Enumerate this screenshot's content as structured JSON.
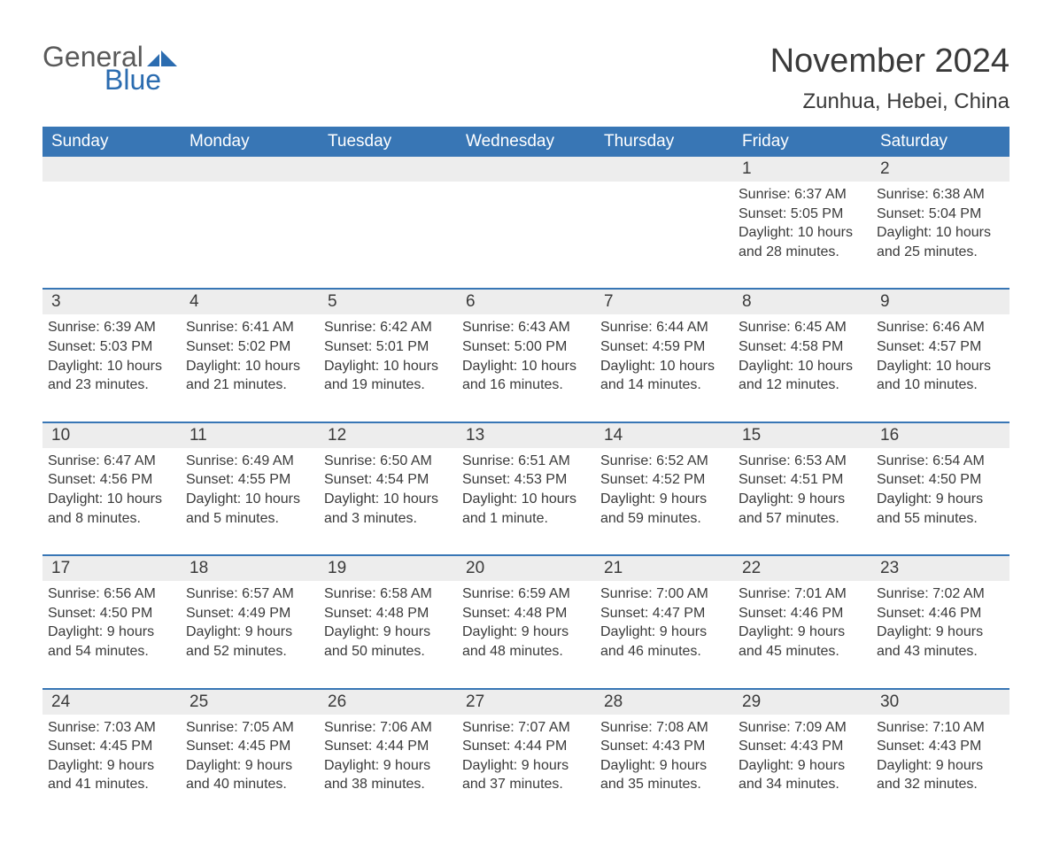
{
  "logo": {
    "word1": "General",
    "word2": "Blue",
    "color_gray": "#5a5a5a",
    "color_blue": "#2b6cb0"
  },
  "title": "November 2024",
  "location": "Zunhua, Hebei, China",
  "header_bg": "#3876b5",
  "header_fg": "#ffffff",
  "daynum_bg": "#ededed",
  "week_border": "#3876b5",
  "text_color": "#3a3a3a",
  "background": "#ffffff",
  "days_of_week": [
    "Sunday",
    "Monday",
    "Tuesday",
    "Wednesday",
    "Thursday",
    "Friday",
    "Saturday"
  ],
  "field_labels": {
    "sunrise": "Sunrise:",
    "sunset": "Sunset:",
    "daylight": "Daylight:"
  },
  "weeks": [
    [
      {
        "empty": true
      },
      {
        "empty": true
      },
      {
        "empty": true
      },
      {
        "empty": true
      },
      {
        "empty": true
      },
      {
        "num": "1",
        "sunrise": "6:37 AM",
        "sunset": "5:05 PM",
        "daylight": "10 hours and 28 minutes."
      },
      {
        "num": "2",
        "sunrise": "6:38 AM",
        "sunset": "5:04 PM",
        "daylight": "10 hours and 25 minutes."
      }
    ],
    [
      {
        "num": "3",
        "sunrise": "6:39 AM",
        "sunset": "5:03 PM",
        "daylight": "10 hours and 23 minutes."
      },
      {
        "num": "4",
        "sunrise": "6:41 AM",
        "sunset": "5:02 PM",
        "daylight": "10 hours and 21 minutes."
      },
      {
        "num": "5",
        "sunrise": "6:42 AM",
        "sunset": "5:01 PM",
        "daylight": "10 hours and 19 minutes."
      },
      {
        "num": "6",
        "sunrise": "6:43 AM",
        "sunset": "5:00 PM",
        "daylight": "10 hours and 16 minutes."
      },
      {
        "num": "7",
        "sunrise": "6:44 AM",
        "sunset": "4:59 PM",
        "daylight": "10 hours and 14 minutes."
      },
      {
        "num": "8",
        "sunrise": "6:45 AM",
        "sunset": "4:58 PM",
        "daylight": "10 hours and 12 minutes."
      },
      {
        "num": "9",
        "sunrise": "6:46 AM",
        "sunset": "4:57 PM",
        "daylight": "10 hours and 10 minutes."
      }
    ],
    [
      {
        "num": "10",
        "sunrise": "6:47 AM",
        "sunset": "4:56 PM",
        "daylight": "10 hours and 8 minutes."
      },
      {
        "num": "11",
        "sunrise": "6:49 AM",
        "sunset": "4:55 PM",
        "daylight": "10 hours and 5 minutes."
      },
      {
        "num": "12",
        "sunrise": "6:50 AM",
        "sunset": "4:54 PM",
        "daylight": "10 hours and 3 minutes."
      },
      {
        "num": "13",
        "sunrise": "6:51 AM",
        "sunset": "4:53 PM",
        "daylight": "10 hours and 1 minute."
      },
      {
        "num": "14",
        "sunrise": "6:52 AM",
        "sunset": "4:52 PM",
        "daylight": "9 hours and 59 minutes."
      },
      {
        "num": "15",
        "sunrise": "6:53 AM",
        "sunset": "4:51 PM",
        "daylight": "9 hours and 57 minutes."
      },
      {
        "num": "16",
        "sunrise": "6:54 AM",
        "sunset": "4:50 PM",
        "daylight": "9 hours and 55 minutes."
      }
    ],
    [
      {
        "num": "17",
        "sunrise": "6:56 AM",
        "sunset": "4:50 PM",
        "daylight": "9 hours and 54 minutes."
      },
      {
        "num": "18",
        "sunrise": "6:57 AM",
        "sunset": "4:49 PM",
        "daylight": "9 hours and 52 minutes."
      },
      {
        "num": "19",
        "sunrise": "6:58 AM",
        "sunset": "4:48 PM",
        "daylight": "9 hours and 50 minutes."
      },
      {
        "num": "20",
        "sunrise": "6:59 AM",
        "sunset": "4:48 PM",
        "daylight": "9 hours and 48 minutes."
      },
      {
        "num": "21",
        "sunrise": "7:00 AM",
        "sunset": "4:47 PM",
        "daylight": "9 hours and 46 minutes."
      },
      {
        "num": "22",
        "sunrise": "7:01 AM",
        "sunset": "4:46 PM",
        "daylight": "9 hours and 45 minutes."
      },
      {
        "num": "23",
        "sunrise": "7:02 AM",
        "sunset": "4:46 PM",
        "daylight": "9 hours and 43 minutes."
      }
    ],
    [
      {
        "num": "24",
        "sunrise": "7:03 AM",
        "sunset": "4:45 PM",
        "daylight": "9 hours and 41 minutes."
      },
      {
        "num": "25",
        "sunrise": "7:05 AM",
        "sunset": "4:45 PM",
        "daylight": "9 hours and 40 minutes."
      },
      {
        "num": "26",
        "sunrise": "7:06 AM",
        "sunset": "4:44 PM",
        "daylight": "9 hours and 38 minutes."
      },
      {
        "num": "27",
        "sunrise": "7:07 AM",
        "sunset": "4:44 PM",
        "daylight": "9 hours and 37 minutes."
      },
      {
        "num": "28",
        "sunrise": "7:08 AM",
        "sunset": "4:43 PM",
        "daylight": "9 hours and 35 minutes."
      },
      {
        "num": "29",
        "sunrise": "7:09 AM",
        "sunset": "4:43 PM",
        "daylight": "9 hours and 34 minutes."
      },
      {
        "num": "30",
        "sunrise": "7:10 AM",
        "sunset": "4:43 PM",
        "daylight": "9 hours and 32 minutes."
      }
    ]
  ]
}
